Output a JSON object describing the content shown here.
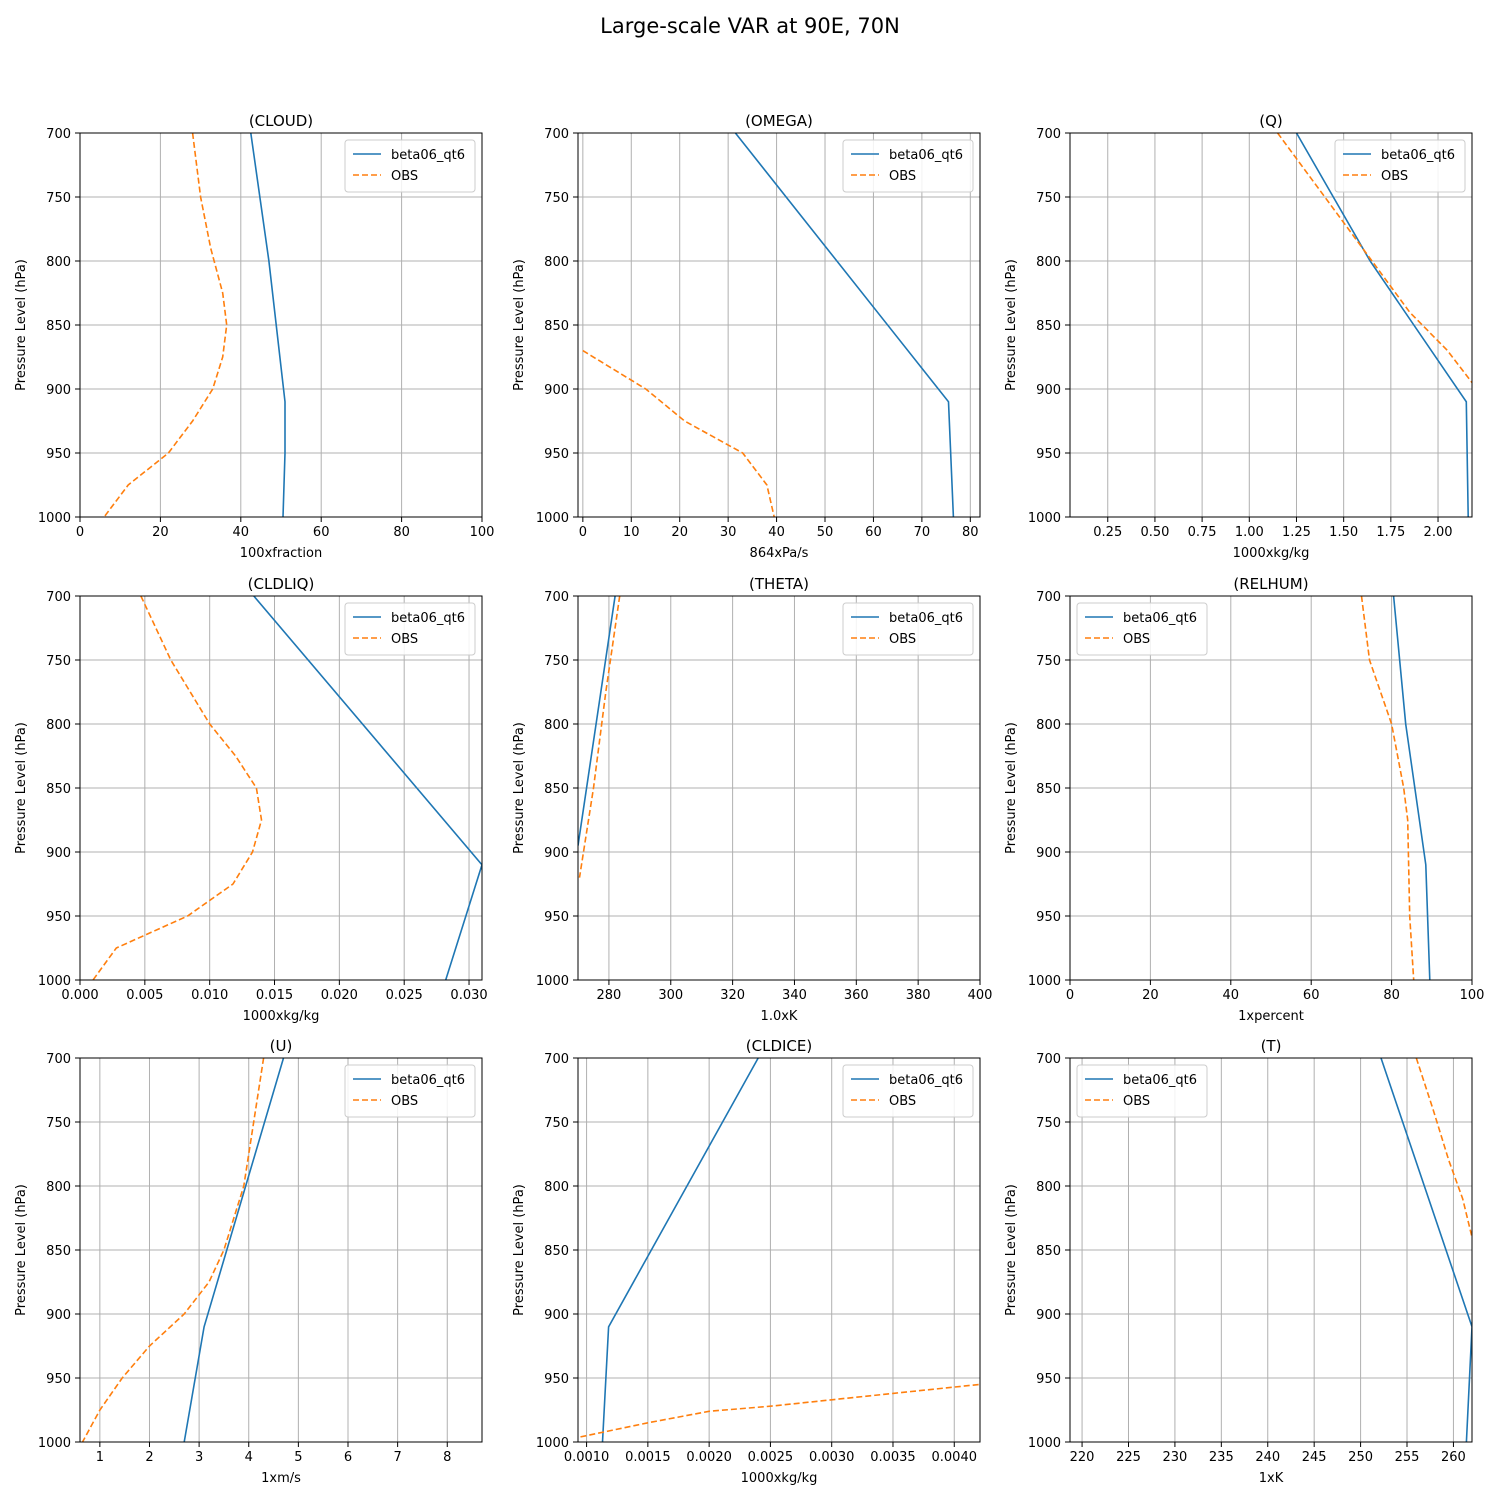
{
  "figure": {
    "title": "Large-scale VAR at 90E, 70N"
  },
  "colors": {
    "model": "#1f77b4",
    "obs": "#ff7f0e",
    "grid": "#b0b0b0"
  },
  "chart_data": [
    {
      "type": "line",
      "title": "(CLOUD)",
      "xlabel": "100xfraction",
      "ylabel": "Pressure Level (hPa)",
      "xlim": [
        0,
        100
      ],
      "ylim": [
        1000,
        700
      ],
      "y_inverted": true,
      "grid": true,
      "legend": "top-right",
      "xticks": [
        0,
        20,
        40,
        60,
        80,
        100
      ],
      "yticks": [
        700,
        750,
        800,
        850,
        900,
        950,
        1000
      ],
      "series": [
        {
          "name": "beta06_qt6",
          "style": "solid",
          "x": [
            42.5,
            47,
            51,
            51,
            50.5
          ],
          "y": [
            700,
            800,
            910,
            950,
            1000
          ]
        },
        {
          "name": "OBS",
          "style": "dashed",
          "x": [
            28,
            30,
            32.5,
            35.5,
            36.5,
            35.5,
            33,
            28,
            22,
            12,
            6
          ],
          "y": [
            700,
            750,
            790,
            825,
            850,
            875,
            900,
            925,
            950,
            975,
            1000
          ]
        }
      ]
    },
    {
      "type": "line",
      "title": "(OMEGA)",
      "xlabel": "864xPa/s",
      "ylabel": "Pressure Level (hPa)",
      "xlim": [
        -1,
        82
      ],
      "ylim": [
        1000,
        700
      ],
      "y_inverted": true,
      "grid": true,
      "legend": "top-right",
      "xticks": [
        0,
        10,
        20,
        30,
        40,
        50,
        60,
        70,
        80
      ],
      "yticks": [
        700,
        750,
        800,
        850,
        900,
        950,
        1000
      ],
      "series": [
        {
          "name": "beta06_qt6",
          "style": "solid",
          "x": [
            31.5,
            75.5,
            76.5
          ],
          "y": [
            700,
            910,
            1000
          ]
        },
        {
          "name": "OBS",
          "style": "dashed",
          "x": [
            0,
            13,
            21,
            33,
            38,
            39.5
          ],
          "y": [
            870,
            900,
            925,
            950,
            975,
            1000
          ]
        }
      ]
    },
    {
      "type": "line",
      "title": "(Q)",
      "xlabel": "1000xkg/kg",
      "ylabel": "Pressure Level (hPa)",
      "xlim": [
        0.05,
        2.18
      ],
      "ylim": [
        1000,
        700
      ],
      "y_inverted": true,
      "grid": true,
      "legend": "top-right",
      "xticks": [
        "0.25",
        "0.50",
        "0.75",
        "1.00",
        "1.25",
        "1.50",
        "1.75",
        "2.00"
      ],
      "yticks": [
        700,
        750,
        800,
        850,
        900,
        950,
        1000
      ],
      "series": [
        {
          "name": "beta06_qt6",
          "style": "solid",
          "x": [
            1.25,
            1.64,
            2.15,
            2.16
          ],
          "y": [
            700,
            800,
            910,
            1000
          ]
        },
        {
          "name": "OBS",
          "style": "dashed",
          "x": [
            1.15,
            1.4,
            1.65,
            1.85,
            2.05,
            2.18
          ],
          "y": [
            700,
            750,
            800,
            840,
            870,
            895
          ]
        }
      ]
    },
    {
      "type": "line",
      "title": "(CLDLIQ)",
      "xlabel": "1000xkg/kg",
      "ylabel": "Pressure Level (hPa)",
      "xlim": [
        0,
        0.031
      ],
      "ylim": [
        1000,
        700
      ],
      "y_inverted": true,
      "grid": true,
      "legend": "top-right",
      "xticks": [
        "0.000",
        "0.005",
        "0.010",
        "0.015",
        "0.020",
        "0.025",
        "0.030"
      ],
      "yticks": [
        700,
        750,
        800,
        850,
        900,
        950,
        1000
      ],
      "series": [
        {
          "name": "beta06_qt6",
          "style": "solid",
          "x": [
            0.0134,
            0.031,
            0.0282
          ],
          "y": [
            700,
            910,
            1000
          ]
        },
        {
          "name": "OBS",
          "style": "dashed",
          "x": [
            0.0047,
            0.007,
            0.01,
            0.012,
            0.0136,
            0.014,
            0.0133,
            0.0118,
            0.0083,
            0.0028,
            0.001
          ],
          "y": [
            700,
            750,
            800,
            825,
            850,
            875,
            900,
            925,
            950,
            975,
            1000
          ]
        }
      ]
    },
    {
      "type": "line",
      "title": "(THETA)",
      "xlabel": "1.0xK",
      "ylabel": "Pressure Level (hPa)",
      "xlim": [
        270,
        400
      ],
      "ylim": [
        1000,
        700
      ],
      "y_inverted": true,
      "grid": true,
      "legend": "top-right",
      "xticks": [
        280,
        300,
        320,
        340,
        360,
        380,
        400
      ],
      "yticks": [
        700,
        750,
        800,
        850,
        900,
        950,
        1000
      ],
      "series": [
        {
          "name": "beta06_qt6",
          "style": "solid",
          "x": [
            282,
            270
          ],
          "y": [
            700,
            895
          ]
        },
        {
          "name": "OBS",
          "style": "dashed",
          "x": [
            283.5,
            279,
            275,
            270.5
          ],
          "y": [
            700,
            775,
            850,
            920
          ]
        }
      ]
    },
    {
      "type": "line",
      "title": "(RELHUM)",
      "xlabel": "1xpercent",
      "ylabel": "Pressure Level (hPa)",
      "xlim": [
        0,
        100
      ],
      "ylim": [
        1000,
        700
      ],
      "y_inverted": true,
      "grid": true,
      "legend": "top-left",
      "xticks": [
        0,
        20,
        40,
        60,
        80,
        100
      ],
      "yticks": [
        700,
        750,
        800,
        850,
        900,
        950,
        1000
      ],
      "series": [
        {
          "name": "beta06_qt6",
          "style": "solid",
          "x": [
            80.5,
            83.5,
            88.5,
            89.5
          ],
          "y": [
            700,
            800,
            910,
            1000
          ]
        },
        {
          "name": "OBS",
          "style": "dashed",
          "x": [
            72.5,
            74.5,
            80,
            83,
            84,
            84.5,
            85.5
          ],
          "y": [
            700,
            750,
            800,
            850,
            875,
            950,
            1000
          ]
        }
      ]
    },
    {
      "type": "line",
      "title": "(U)",
      "xlabel": "1xm/s",
      "ylabel": "Pressure Level (hPa)",
      "xlim": [
        0.6,
        8.7
      ],
      "ylim": [
        1000,
        700
      ],
      "y_inverted": true,
      "grid": true,
      "legend": "top-right",
      "xticks": [
        1,
        2,
        3,
        4,
        5,
        6,
        7,
        8
      ],
      "yticks": [
        700,
        750,
        800,
        850,
        900,
        950,
        1000
      ],
      "series": [
        {
          "name": "beta06_qt6",
          "style": "solid",
          "x": [
            4.7,
            3.1,
            2.7
          ],
          "y": [
            700,
            910,
            1000
          ]
        },
        {
          "name": "OBS",
          "style": "dashed",
          "x": [
            4.3,
            4.1,
            3.9,
            3.5,
            3.2,
            2.7,
            2.0,
            1.45,
            1.0,
            0.65
          ],
          "y": [
            700,
            750,
            800,
            850,
            875,
            900,
            925,
            950,
            975,
            1000
          ]
        }
      ]
    },
    {
      "type": "line",
      "title": "(CLDICE)",
      "xlabel": "1000xkg/kg",
      "ylabel": "Pressure Level (hPa)",
      "xlim": [
        0.00093,
        0.00421
      ],
      "ylim": [
        1000,
        700
      ],
      "y_inverted": true,
      "grid": true,
      "legend": "top-right",
      "xticks": [
        "0.0010",
        "0.0015",
        "0.0020",
        "0.0025",
        "0.0030",
        "0.0035",
        "0.0040"
      ],
      "yticks": [
        700,
        750,
        800,
        850,
        900,
        950,
        1000
      ],
      "series": [
        {
          "name": "beta06_qt6",
          "style": "solid",
          "x": [
            0.0024,
            0.00118,
            0.00113
          ],
          "y": [
            700,
            910,
            1000
          ]
        },
        {
          "name": "OBS",
          "style": "dashed",
          "x": [
            0.00095,
            0.0015,
            0.002,
            0.0025,
            0.003,
            0.0035,
            0.00421
          ],
          "y": [
            996,
            985,
            976,
            972,
            967,
            962,
            955
          ]
        }
      ]
    },
    {
      "type": "line",
      "title": "(T)",
      "xlabel": "1xK",
      "ylabel": "Pressure Level (hPa)",
      "xlim": [
        218.7,
        262
      ],
      "ylim": [
        1000,
        700
      ],
      "y_inverted": true,
      "grid": true,
      "legend": "top-left",
      "xticks": [
        220,
        225,
        230,
        235,
        240,
        245,
        250,
        255,
        260
      ],
      "yticks": [
        700,
        750,
        800,
        850,
        900,
        950,
        1000
      ],
      "series": [
        {
          "name": "beta06_qt6",
          "style": "solid",
          "x": [
            252.2,
            262,
            261.4
          ],
          "y": [
            700,
            910,
            1000
          ]
        },
        {
          "name": "OBS",
          "style": "dashed",
          "x": [
            256,
            257.8,
            259.5,
            261,
            262
          ],
          "y": [
            700,
            740,
            780,
            810,
            840
          ]
        }
      ]
    }
  ]
}
